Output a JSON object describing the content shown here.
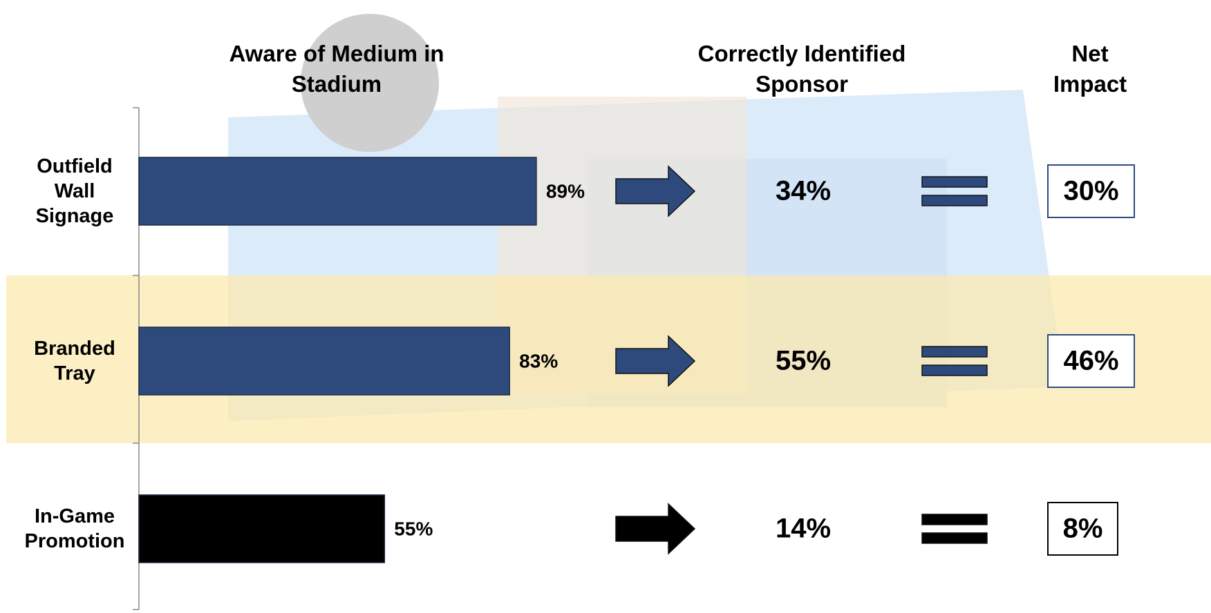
{
  "chart_data": {
    "type": "bar",
    "orientation": "horizontal",
    "categories": [
      "Outfield Wall Signage",
      "Branded Tray",
      "In-Game Promotion"
    ],
    "colors": [
      "#2e4a7d",
      "#2e4a7d",
      "#000000"
    ],
    "highlight_band_color": "#fbe9b0",
    "xlim": [
      0,
      100
    ],
    "series": [
      {
        "name": "Aware of Medium in Stadium",
        "values": [
          89,
          83,
          55
        ],
        "value_labels": [
          "89%",
          "83%",
          "55%"
        ]
      },
      {
        "name": "Correctly Identified Sponsor",
        "values": [
          34,
          55,
          14
        ],
        "value_labels": [
          "34%",
          "55%",
          "14%"
        ]
      },
      {
        "name": "Net Impact",
        "values": [
          30,
          46,
          8
        ],
        "value_labels": [
          "30%",
          "46%",
          "8%"
        ]
      }
    ]
  }
}
